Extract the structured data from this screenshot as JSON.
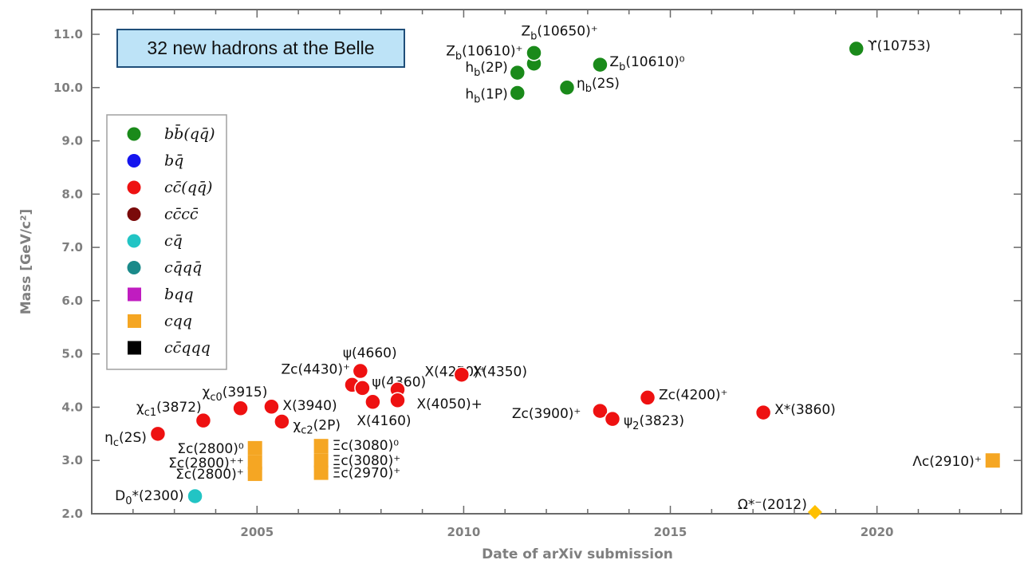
{
  "chart_data": {
    "type": "scatter",
    "title": "32 new hadrons at the Belle",
    "xlabel": "Date of arXiv submission",
    "ylabel": "Mass [GeV/c²]",
    "xlim": [
      2001.0,
      2023.5
    ],
    "ylim": [
      2.0,
      11.5
    ],
    "x_ticks": [
      2005,
      2010,
      2015,
      2020
    ],
    "y_ticks": [
      "2.0",
      "3.0",
      "4.0",
      "5.0",
      "6.0",
      "7.0",
      "8.0",
      "9.0",
      "10.0",
      "11.0"
    ],
    "grid": false,
    "legend_position": "left",
    "legend": [
      {
        "key": "bb",
        "label": "bb̄(qq̄)",
        "color": "#1a8a1a",
        "shape": "circle"
      },
      {
        "key": "bq",
        "label": "bq̄",
        "color": "#1515ee",
        "shape": "circle"
      },
      {
        "key": "cc",
        "label": "cc̄(qq̄)",
        "color": "#ee1111",
        "shape": "circle"
      },
      {
        "key": "cccc",
        "label": "cc̄cc̄",
        "color": "#7a0a0a",
        "shape": "circle"
      },
      {
        "key": "cq",
        "label": "cq̄",
        "color": "#22c4c4",
        "shape": "circle"
      },
      {
        "key": "cqqq",
        "label": "cq̄qq̄",
        "color": "#1a8a8a",
        "shape": "circle"
      },
      {
        "key": "bqq",
        "label": "bqq",
        "color": "#c01cc0",
        "shape": "square"
      },
      {
        "key": "cqq",
        "label": "cqq",
        "color": "#f5a623",
        "shape": "square"
      },
      {
        "key": "ccqqq",
        "label": "cc̄qqq",
        "color": "#000000",
        "shape": "square"
      }
    ],
    "points": [
      {
        "cat": "bb",
        "x": 2011.3,
        "y": 9.9,
        "label": "h_b(1P)"
      },
      {
        "cat": "bb",
        "x": 2011.3,
        "y": 10.28,
        "label": "h_b(2P)"
      },
      {
        "cat": "bb",
        "x": 2011.7,
        "y": 10.45,
        "label": "Z_b(10610)⁺"
      },
      {
        "cat": "bb",
        "x": 2011.7,
        "y": 10.65,
        "label": "Z_b(10650)⁺"
      },
      {
        "cat": "bb",
        "x": 2012.5,
        "y": 10.0,
        "label": "η_b(2S)"
      },
      {
        "cat": "bb",
        "x": 2013.3,
        "y": 10.43,
        "label": "Z_b(10610)⁰"
      },
      {
        "cat": "bb",
        "x": 2019.5,
        "y": 10.73,
        "label": "ϒ(10753)"
      },
      {
        "cat": "cc",
        "x": 2002.6,
        "y": 3.5,
        "label": "η_c(2S)"
      },
      {
        "cat": "cc",
        "x": 2003.7,
        "y": 3.75,
        "label": "χ_c1(3872)"
      },
      {
        "cat": "cc",
        "x": 2004.6,
        "y": 3.98,
        "label": "χ_c0(3915)"
      },
      {
        "cat": "cc",
        "x": 2005.35,
        "y": 4.01,
        "label": "X(3940)"
      },
      {
        "cat": "cc",
        "x": 2005.6,
        "y": 3.73,
        "label": "χ_c2(2P)"
      },
      {
        "cat": "cc",
        "x": 2007.3,
        "y": 4.42,
        "label": "Zc(4430)⁺"
      },
      {
        "cat": "cc",
        "x": 2007.5,
        "y": 4.68,
        "label": "ψ(4660)"
      },
      {
        "cat": "cc",
        "x": 2007.55,
        "y": 4.36,
        "label": "ψ(4360)"
      },
      {
        "cat": "cc",
        "x": 2007.8,
        "y": 4.1,
        "label": "X(4160)"
      },
      {
        "cat": "cc",
        "x": 2008.4,
        "y": 4.33,
        "label": "X(4250)⁺"
      },
      {
        "cat": "cc",
        "x": 2008.4,
        "y": 4.13,
        "label": "X(4050)+"
      },
      {
        "cat": "cc",
        "x": 2009.95,
        "y": 4.61,
        "label": "X(4350)"
      },
      {
        "cat": "cc",
        "x": 2013.3,
        "y": 3.93,
        "label": "Zc(3900)⁺"
      },
      {
        "cat": "cc",
        "x": 2013.6,
        "y": 3.78,
        "label": "ψ_2(3823)"
      },
      {
        "cat": "cc",
        "x": 2014.45,
        "y": 4.18,
        "label": "Zc(4200)⁺"
      },
      {
        "cat": "cc",
        "x": 2017.25,
        "y": 3.9,
        "label": "X*(3860)"
      },
      {
        "cat": "cq",
        "x": 2003.5,
        "y": 2.33,
        "label": "D_0*(2300)"
      },
      {
        "cat": "cqq",
        "x": 2004.95,
        "y": 3.23,
        "label": "Σc(2800)⁰"
      },
      {
        "cat": "cqq",
        "x": 2004.95,
        "y": 2.96,
        "label": "Σc(2800)⁺⁺"
      },
      {
        "cat": "cqq",
        "x": 2004.95,
        "y": 2.75,
        "label": "Σc(2800)⁺"
      },
      {
        "cat": "cqq",
        "x": 2006.55,
        "y": 3.27,
        "label": "Ξc(3080)⁰"
      },
      {
        "cat": "cqq",
        "x": 2006.55,
        "y": 3.0,
        "label": "Ξc(3080)⁺"
      },
      {
        "cat": "cqq",
        "x": 2006.55,
        "y": 2.77,
        "label": "Ξc(2970)⁺"
      },
      {
        "cat": "cqq",
        "x": 2022.8,
        "y": 3.0,
        "label": "Λc(2910)⁺"
      },
      {
        "cat": "cqq",
        "x": 2018.5,
        "y": 2.03,
        "label": "Ω*⁻(2012)",
        "shape": "diamond"
      }
    ]
  }
}
